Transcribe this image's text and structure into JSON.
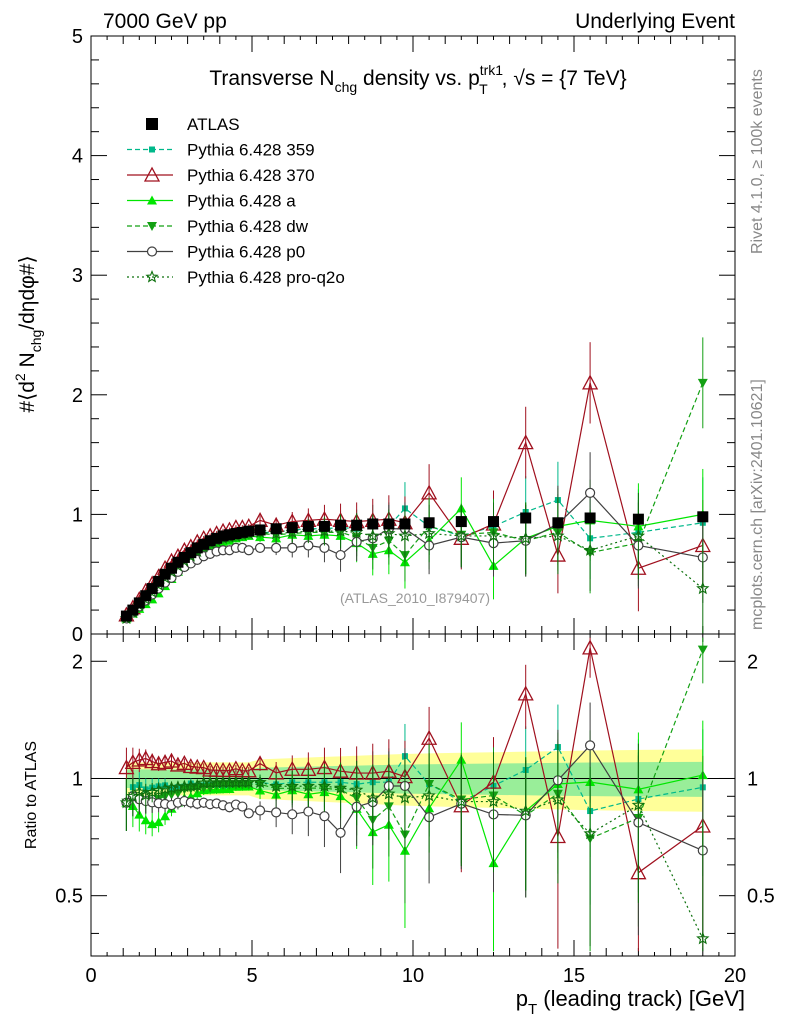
{
  "header": {
    "left": "7000 GeV pp",
    "right": "Underlying Event"
  },
  "side_labels": {
    "rivet": "Rivet 4.1.0, ≥ 100k events",
    "mcplots": "mcplots.cern.ch [arXiv:2401.10621]"
  },
  "watermark": "(ATLAS_2010_I879407)",
  "chart_data": [
    {
      "type": "line",
      "panel": "main",
      "title": "Transverse N_chg density vs. p_T^trk1, √s = {7 TeV}",
      "title_parts": {
        "t1": "Transverse N",
        "t1_sub": "chg",
        "t2": " density vs. p",
        "t2_sup": "trk1",
        "t2_sub": "T",
        "t3": ", √s = {7 TeV}"
      },
      "ylabel": "#⟨d² N_chg/dηdφ#⟩",
      "ylabel_parts": {
        "a": "#⟨d",
        "a_sup": "2",
        "b": " N",
        "b_sub": "chg",
        "c": "/dηdφ#⟩"
      },
      "xlim": [
        0,
        20
      ],
      "ylim": [
        0,
        5
      ],
      "yticks": [
        0,
        1,
        2,
        3,
        4,
        5
      ],
      "legend": [
        {
          "name": "ATLAS",
          "color": "#000000",
          "marker": "square"
        },
        {
          "name": "Pythia 6.428 359",
          "color": "#00b88a",
          "marker": "small-square"
        },
        {
          "name": "Pythia 6.428 370",
          "color": "#a0101e",
          "marker": "open-triangle"
        },
        {
          "name": "Pythia 6.428 a",
          "color": "#00e600",
          "marker": "triangle"
        },
        {
          "name": "Pythia 6.428 dw",
          "color": "#13a013",
          "marker": "down-triangle"
        },
        {
          "name": "Pythia 6.428 p0",
          "color": "#404040",
          "marker": "open-circle"
        },
        {
          "name": "Pythia 6.428 pro-q2o",
          "color": "#0d700d",
          "marker": "star"
        }
      ],
      "x": [
        1.1,
        1.3,
        1.5,
        1.7,
        1.9,
        2.1,
        2.3,
        2.5,
        2.7,
        2.9,
        3.1,
        3.3,
        3.5,
        3.7,
        3.9,
        4.1,
        4.3,
        4.5,
        4.7,
        4.9,
        5.25,
        5.75,
        6.25,
        6.75,
        7.25,
        7.75,
        8.25,
        8.75,
        9.25,
        9.75,
        10.5,
        11.5,
        12.5,
        13.5,
        14.5,
        15.5,
        17,
        19
      ],
      "series": [
        {
          "name": "ATLAS",
          "values": [
            0.15,
            0.2,
            0.26,
            0.32,
            0.38,
            0.44,
            0.5,
            0.55,
            0.6,
            0.64,
            0.68,
            0.72,
            0.75,
            0.78,
            0.8,
            0.82,
            0.83,
            0.84,
            0.85,
            0.86,
            0.87,
            0.88,
            0.89,
            0.9,
            0.9,
            0.91,
            0.91,
            0.92,
            0.92,
            0.92,
            0.93,
            0.94,
            0.94,
            0.97,
            0.93,
            0.97,
            0.96,
            0.98
          ]
        },
        {
          "name": "Pythia 6.428 359",
          "values": [
            0.13,
            0.19,
            0.25,
            0.3,
            0.36,
            0.42,
            0.48,
            0.52,
            0.57,
            0.61,
            0.66,
            0.69,
            0.72,
            0.75,
            0.77,
            0.78,
            0.79,
            0.8,
            0.82,
            0.83,
            0.85,
            0.85,
            0.87,
            0.88,
            0.88,
            0.89,
            0.88,
            0.9,
            0.9,
            1.05,
            0.9,
            0.82,
            0.9,
            1.02,
            1.12,
            0.8,
            0.85,
            0.93
          ]
        },
        {
          "name": "Pythia 6.428 370",
          "values": [
            0.16,
            0.22,
            0.29,
            0.36,
            0.42,
            0.48,
            0.55,
            0.61,
            0.65,
            0.7,
            0.73,
            0.77,
            0.8,
            0.82,
            0.84,
            0.86,
            0.87,
            0.89,
            0.89,
            0.9,
            0.95,
            0.91,
            0.94,
            0.95,
            0.96,
            0.95,
            0.94,
            0.95,
            0.96,
            0.93,
            1.18,
            0.8,
            0.92,
            1.6,
            0.66,
            2.1,
            0.55,
            0.74
          ]
        },
        {
          "name": "Pythia 6.428 a",
          "values": [
            0.13,
            0.17,
            0.21,
            0.25,
            0.29,
            0.34,
            0.4,
            0.46,
            0.52,
            0.57,
            0.61,
            0.66,
            0.7,
            0.73,
            0.75,
            0.77,
            0.78,
            0.8,
            0.81,
            0.82,
            0.81,
            0.8,
            0.83,
            0.82,
            0.83,
            0.82,
            0.76,
            0.67,
            0.7,
            0.6,
            0.78,
            1.05,
            0.57,
            0.8,
            0.9,
            0.95,
            0.9,
            1.0
          ]
        },
        {
          "name": "Pythia 6.428 dw",
          "values": [
            0.13,
            0.18,
            0.23,
            0.28,
            0.33,
            0.39,
            0.45,
            0.5,
            0.55,
            0.6,
            0.64,
            0.68,
            0.71,
            0.74,
            0.77,
            0.79,
            0.8,
            0.81,
            0.82,
            0.83,
            0.84,
            0.83,
            0.84,
            0.85,
            0.85,
            0.85,
            0.81,
            0.72,
            0.78,
            0.66,
            0.9,
            0.83,
            0.85,
            0.78,
            0.85,
            0.68,
            0.76,
            2.1
          ]
        },
        {
          "name": "Pythia 6.428 p0",
          "values": [
            0.13,
            0.18,
            0.23,
            0.28,
            0.33,
            0.38,
            0.43,
            0.47,
            0.52,
            0.56,
            0.59,
            0.62,
            0.65,
            0.67,
            0.69,
            0.7,
            0.7,
            0.72,
            0.72,
            0.7,
            0.72,
            0.72,
            0.72,
            0.74,
            0.72,
            0.66,
            0.77,
            0.8,
            0.88,
            0.88,
            0.74,
            0.81,
            0.76,
            0.78,
            0.92,
            1.18,
            0.74,
            0.64
          ]
        },
        {
          "name": "Pythia 6.428 pro-q2o",
          "values": [
            0.13,
            0.18,
            0.24,
            0.29,
            0.35,
            0.41,
            0.47,
            0.52,
            0.57,
            0.61,
            0.65,
            0.69,
            0.73,
            0.76,
            0.78,
            0.8,
            0.81,
            0.82,
            0.83,
            0.84,
            0.85,
            0.84,
            0.85,
            0.86,
            0.86,
            0.86,
            0.85,
            0.82,
            0.84,
            0.82,
            0.84,
            0.82,
            0.82,
            0.8,
            0.82,
            0.7,
            0.82,
            0.38
          ]
        }
      ]
    },
    {
      "type": "line",
      "panel": "ratio",
      "xlabel": "p_T (leading track) [GeV]",
      "xlabel_parts": {
        "a": "p",
        "a_sub": "T",
        "b": " (leading track) [GeV]"
      },
      "ylabel": "Ratio to ATLAS",
      "xlim": [
        0,
        20
      ],
      "ylim": [
        0.35,
        2.35
      ],
      "yticks": [
        0.5,
        1,
        2
      ],
      "xticks": [
        0,
        5,
        10,
        15,
        20
      ],
      "band_note": "ATLAS uncertainty band (yellow: total, green: statistical)"
    }
  ]
}
